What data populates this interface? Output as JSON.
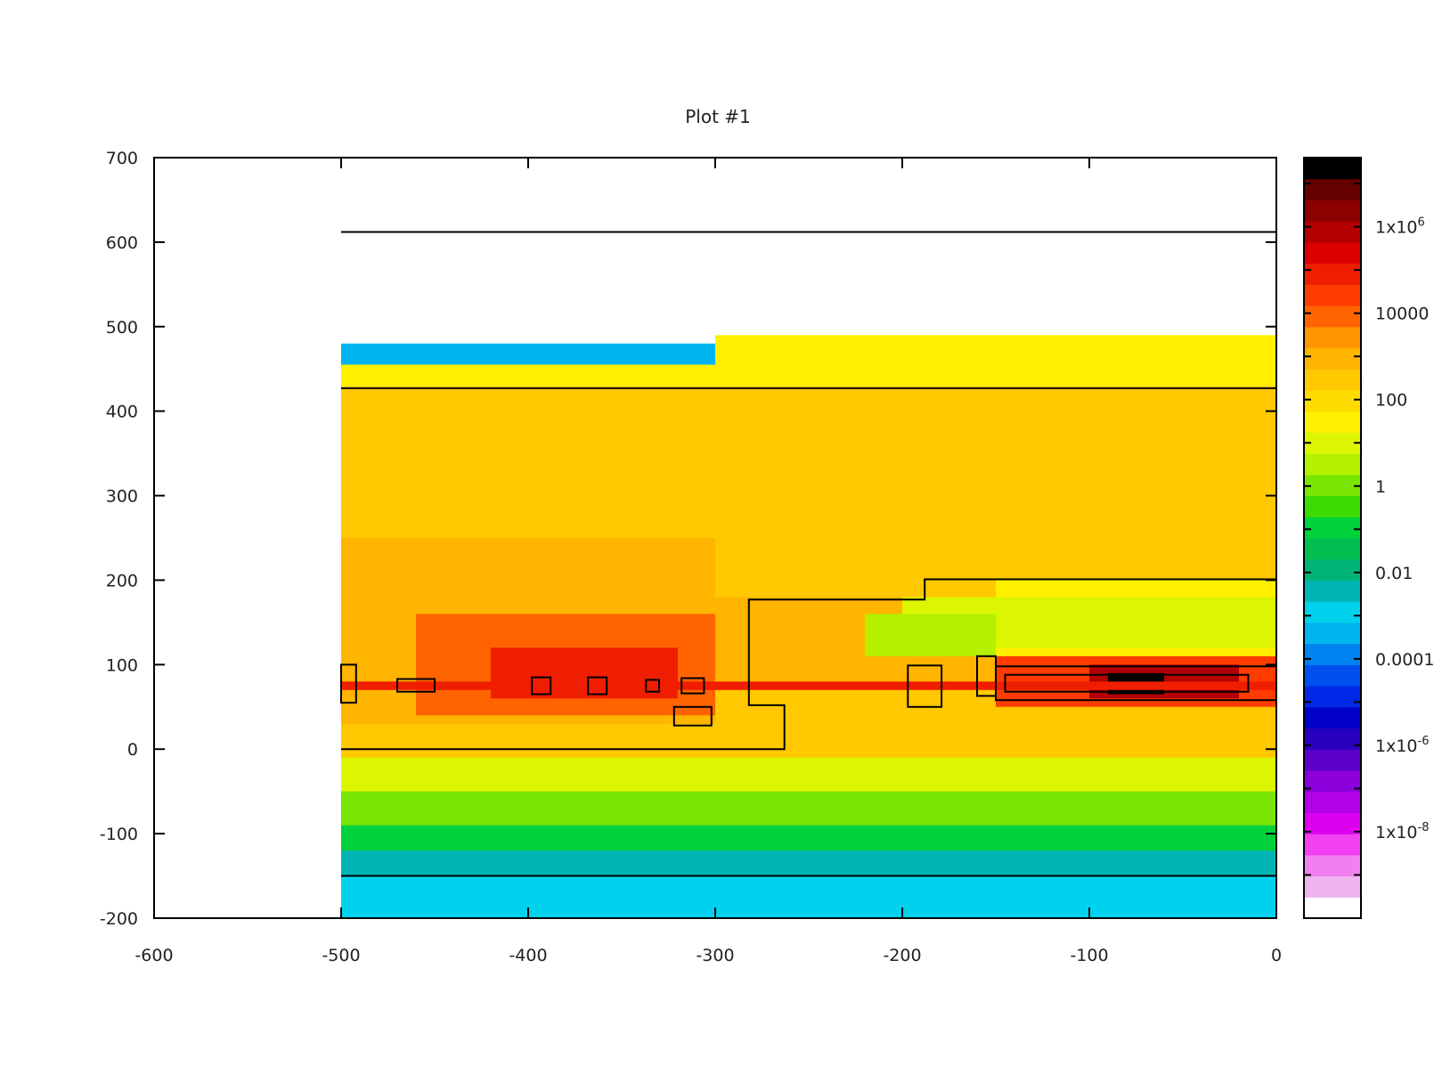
{
  "chart_data": {
    "type": "heatmap",
    "title": "Plot #1",
    "xlabel": "",
    "ylabel": "",
    "xlim": [
      -600,
      0
    ],
    "ylim": [
      -200,
      700
    ],
    "x_ticks": [
      "-600",
      "-500",
      "-400",
      "-300",
      "-200",
      "-100",
      "0"
    ],
    "x_tick_values": [
      -600,
      -500,
      -400,
      -300,
      -200,
      -100,
      0
    ],
    "y_ticks": [
      "-200",
      "-100",
      "0",
      "100",
      "200",
      "300",
      "400",
      "500",
      "600",
      "700"
    ],
    "y_tick_values": [
      -200,
      -100,
      0,
      100,
      200,
      300,
      400,
      500,
      600,
      700
    ],
    "colorbar": {
      "scale": "log",
      "range_exponent": [
        -10,
        7.6
      ],
      "labels": [
        {
          "base": "1x10",
          "exp": "6",
          "log": 6
        },
        {
          "base": "10000",
          "exp": "",
          "log": 4
        },
        {
          "base": "100",
          "exp": "",
          "log": 2
        },
        {
          "base": "1",
          "exp": "",
          "log": 0
        },
        {
          "base": "0.01",
          "exp": "",
          "log": -2
        },
        {
          "base": "0.0001",
          "exp": "",
          "log": -4
        },
        {
          "base": "1x10",
          "exp": "-6",
          "log": -6
        },
        {
          "base": "1x10",
          "exp": "-8",
          "log": -8
        }
      ],
      "colors": [
        "#ffffff",
        "#eeb4ee",
        "#f080f0",
        "#f040f0",
        "#dd00ee",
        "#b400e6",
        "#8c00dc",
        "#5a00c8",
        "#2800be",
        "#0000c8",
        "#0028e6",
        "#0050f0",
        "#0082f0",
        "#00b4f0",
        "#00d2ee",
        "#00b4b4",
        "#00b478",
        "#00be50",
        "#00d23c",
        "#3cdc00",
        "#78e600",
        "#b4f000",
        "#dcf500",
        "#fff000",
        "#ffdc00",
        "#ffc800",
        "#ffb400",
        "#ff9600",
        "#ff6400",
        "#ff3c00",
        "#f01e00",
        "#dc0000",
        "#b40000",
        "#8c0000",
        "#640000",
        "#000000"
      ]
    },
    "heatmap_regions": [
      {
        "x": [
          -500,
          0
        ],
        "y": [
          -150,
          430
        ],
        "log_value": 2.3
      },
      {
        "x": [
          -500,
          -300
        ],
        "y": [
          0,
          250
        ],
        "log_value": 3.0
      },
      {
        "x": [
          -460,
          -300
        ],
        "y": [
          40,
          160
        ],
        "log_value": 4.0
      },
      {
        "x": [
          -420,
          -320
        ],
        "y": [
          60,
          120
        ],
        "log_value": 4.8
      },
      {
        "x": [
          -300,
          -150
        ],
        "y": [
          80,
          180
        ],
        "log_value": 2.8
      },
      {
        "x": [
          -150,
          0
        ],
        "y": [
          100,
          200
        ],
        "log_value": 1.5
      },
      {
        "x": [
          -200,
          0
        ],
        "y": [
          120,
          180
        ],
        "log_value": 1.0
      },
      {
        "x": [
          -220,
          -150
        ],
        "y": [
          110,
          160
        ],
        "log_value": 0.6
      },
      {
        "x": [
          -500,
          0
        ],
        "y": [
          -10,
          30
        ],
        "log_value": 2.6
      },
      {
        "x": [
          -500,
          0
        ],
        "y": [
          -50,
          -10
        ],
        "log_value": 1.2
      },
      {
        "x": [
          -500,
          0
        ],
        "y": [
          -90,
          -50
        ],
        "log_value": 0.2
      },
      {
        "x": [
          -500,
          0
        ],
        "y": [
          -120,
          -90
        ],
        "log_value": -1.0
      },
      {
        "x": [
          -500,
          0
        ],
        "y": [
          -150,
          -120
        ],
        "log_value": -2.2
      },
      {
        "x": [
          -500,
          0
        ],
        "y": [
          430,
          460
        ],
        "log_value": 1.3
      },
      {
        "x": [
          -500,
          -300
        ],
        "y": [
          455,
          480
        ],
        "log_value": -3.5
      },
      {
        "x": [
          -300,
          0
        ],
        "y": [
          455,
          490
        ],
        "log_value": 1.6
      },
      {
        "x": [
          -500,
          0
        ],
        "y": [
          -200,
          -150
        ],
        "log_value": -2.7
      },
      {
        "x": [
          -150,
          0
        ],
        "y": [
          50,
          110
        ],
        "log_value": 4.6
      },
      {
        "x": [
          -100,
          -20
        ],
        "y": [
          60,
          100
        ],
        "log_value": 6.0
      },
      {
        "x": [
          -90,
          -60
        ],
        "y": [
          65,
          90
        ],
        "log_value": 7.5
      },
      {
        "x": [
          -500,
          0
        ],
        "y": [
          70,
          80
        ],
        "log_value": 5.0
      }
    ]
  }
}
